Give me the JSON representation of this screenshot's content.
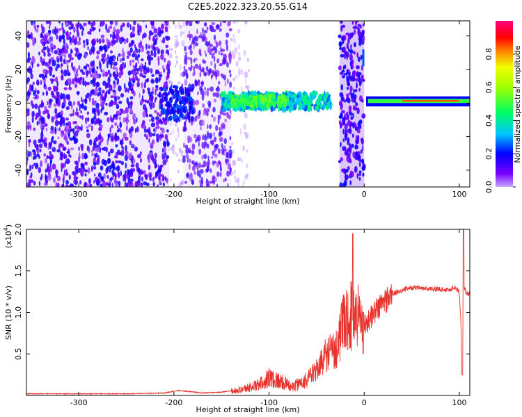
{
  "title": "C2E5.2022.323.20.55.G14",
  "chart_data": [
    {
      "type": "heatmap",
      "xlabel": "Height of straight line (km)",
      "ylabel": "Frequency (Hz)",
      "xlim": [
        -355,
        111
      ],
      "ylim": [
        -50,
        49
      ],
      "xticks": [
        -300,
        -200,
        -100,
        0,
        100
      ],
      "yticks": [
        -40,
        -20,
        0,
        20,
        40
      ],
      "colorbar": {
        "label": "Normalized spectral amplitude",
        "range": [
          0.0,
          1.0
        ],
        "ticks": [
          0.0,
          0.2,
          0.4,
          0.6,
          0.8
        ],
        "colors": [
          "#c8a8ff",
          "#7a00ff",
          "#0000ff",
          "#00c8ff",
          "#00ff60",
          "#f0ff00",
          "#ff8000",
          "#ff0000",
          "#ff0080"
        ]
      },
      "features": [
        {
          "x_range": [
            -355,
            -205
          ],
          "freq_range": [
            -50,
            49
          ],
          "amplitude": 0.15
        },
        {
          "x_range": [
            -205,
            -180
          ],
          "freq_range": [
            -10,
            12
          ],
          "amplitude": 0.22
        },
        {
          "x_range": [
            -190,
            -140
          ],
          "freq_range": [
            -50,
            49
          ],
          "amplitude": 0.08
        },
        {
          "x_range": [
            -150,
            -35
          ],
          "freq_center": 2,
          "freq_width": 8,
          "amplitude": 0.4
        },
        {
          "x_range": [
            -26,
            0
          ],
          "freq_range": [
            -50,
            49
          ],
          "amplitude": 0.25
        },
        {
          "x_range": [
            2,
            111
          ],
          "freq_center": 1,
          "freq_width": 5,
          "amplitude": 0.9
        }
      ]
    },
    {
      "type": "line",
      "xlabel": "Height of straight line (km)",
      "ylabel": "SNR (10 * v/v)",
      "y_multiplier": "(x10",
      "y_multiplier_exp": "4",
      "y_multiplier_close": ")",
      "xlim": [
        -355,
        111
      ],
      "ylim": [
        0,
        2.0
      ],
      "xticks": [
        -300,
        -200,
        -100,
        0,
        100
      ],
      "yticks": [
        0.5,
        1.0,
        1.5,
        2.0
      ],
      "ytick_labels": [
        "0.5",
        "1.0",
        "1.5",
        "2.0"
      ],
      "color": "#e8322d",
      "x": [
        -355,
        -300,
        -250,
        -210,
        -195,
        -170,
        -150,
        -130,
        -110,
        -100,
        -90,
        -75,
        -60,
        -50,
        -40,
        -30,
        -25,
        -20,
        -15,
        -10,
        -5,
        0,
        10,
        20,
        30,
        40,
        50,
        60,
        70,
        80,
        90,
        95,
        100,
        103,
        105,
        108,
        111
      ],
      "y": [
        0.02,
        0.02,
        0.02,
        0.03,
        0.06,
        0.03,
        0.04,
        0.07,
        0.13,
        0.22,
        0.18,
        0.1,
        0.2,
        0.3,
        0.5,
        0.55,
        0.75,
        0.9,
        0.95,
        1.0,
        0.95,
        0.82,
        1.0,
        1.12,
        1.22,
        1.27,
        1.3,
        1.29,
        1.28,
        1.28,
        1.27,
        1.3,
        1.25,
        0.55,
        1.3,
        1.22,
        1.23
      ]
    }
  ]
}
